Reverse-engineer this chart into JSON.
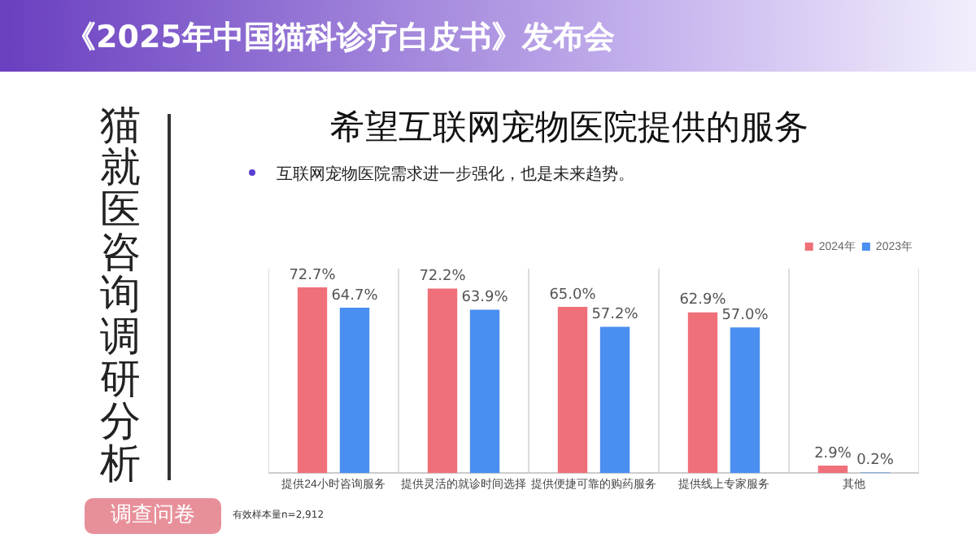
{
  "chart_data": {
    "type": "bar",
    "title": "希望互联网宠物医院提供的服务",
    "subtitle": "互联网宠物医院需求进一步强化，也是未来趋势。",
    "categories": [
      "提供24小时咨询服务",
      "提供灵活的就诊时间选择",
      "提供便捷可靠的购药服务",
      "提供线上专家服务",
      "其他"
    ],
    "series": [
      {
        "name": "2024年",
        "color": "#f0707a",
        "values": [
          72.7,
          72.2,
          65.0,
          62.9,
          2.9
        ],
        "value_labels": [
          "72.7%",
          "72.2%",
          "65.0%",
          "62.9%",
          "2.9%"
        ]
      },
      {
        "name": "2023年",
        "color": "#4a8ef0",
        "values": [
          64.7,
          63.9,
          57.2,
          57.0,
          0.2
        ],
        "value_labels": [
          "64.7%",
          "63.9%",
          "57.2%",
          "57.0%",
          "0.2%"
        ]
      }
    ],
    "grid": "x",
    "legend": "top right",
    "annotations": [
      "《2025年中国猫科诊疗白皮书》发布会",
      "猫就医咨询调研分析",
      "调查问卷",
      "有效样本量n=2,912"
    ]
  }
}
